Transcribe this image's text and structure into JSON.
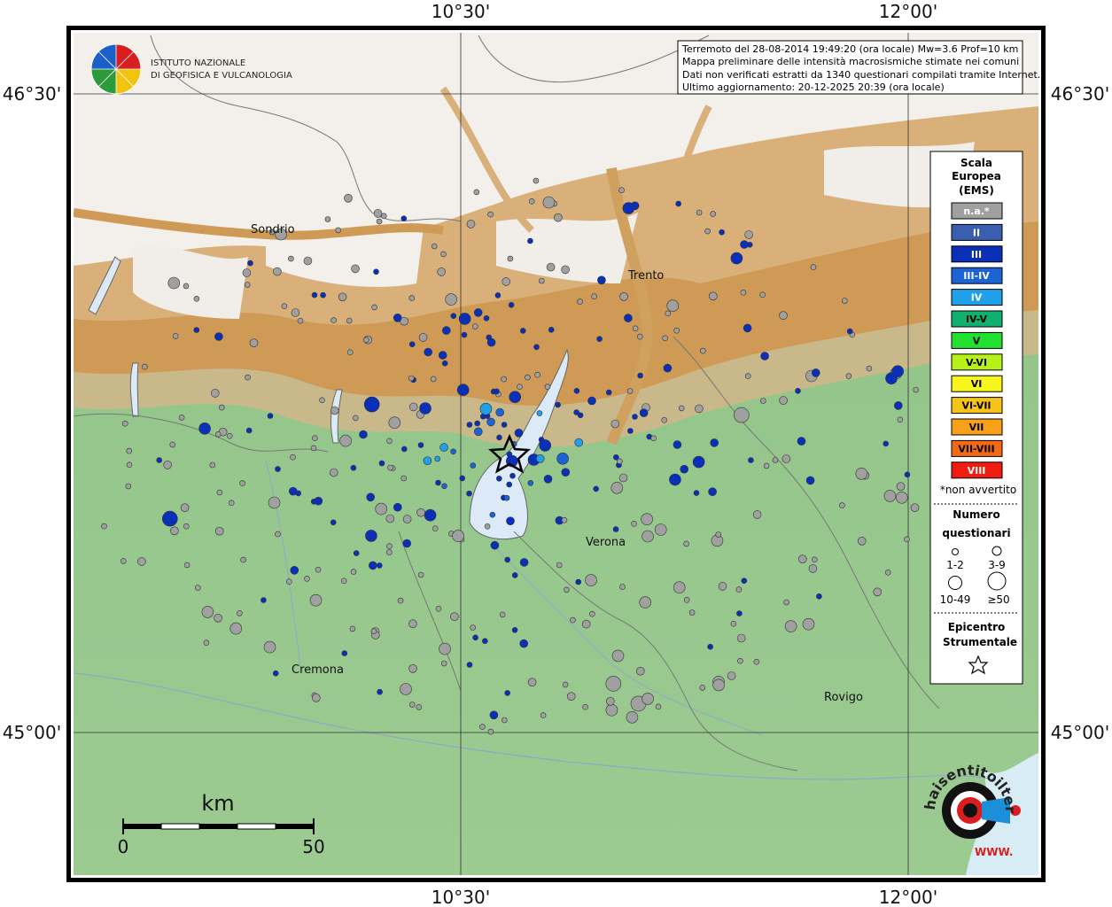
{
  "info_box": {
    "line1": "Terremoto del 28-08-2014 19:49:20 (ora locale) Mw=3.6 Prof=10 km",
    "line2": "Mappa preliminare delle intensità macrosismiche stimate nei comuni",
    "line3": "Dati non verificati estratti da 1340 questionari compilati tramite Internet.",
    "line4": "Ultimo aggiornamento: 20-12-2025 20:39 (ora locale)"
  },
  "ingv": {
    "line1": "ISTITUTO NAZIONALE",
    "line2": "DI GEOFISICA E VULCANOLOGIA"
  },
  "coords": {
    "lon_left": "10°30'",
    "lon_right": "12°00'",
    "lat_top": "46°30'",
    "lat_bottom": "45°00'"
  },
  "cities": [
    "Sondrio",
    "Trento",
    "Verona",
    "Cremona",
    "Rovigo"
  ],
  "scale_bar": {
    "unit": "km",
    "start": "0",
    "end": "50"
  },
  "legend": {
    "title1": "Scala",
    "title2": "Europea",
    "title3": "(EMS)",
    "levels": [
      {
        "label": "n.a.*",
        "color": "#a0a0a0",
        "text": "#ffffff"
      },
      {
        "label": "II",
        "color": "#3a5fb0",
        "text": "#ffffff"
      },
      {
        "label": "III",
        "color": "#0a2fb8",
        "text": "#ffffff"
      },
      {
        "label": "III-IV",
        "color": "#1c63d6",
        "text": "#ffffff"
      },
      {
        "label": "IV",
        "color": "#20a0e8",
        "text": "#ffffff"
      },
      {
        "label": "IV-V",
        "color": "#12b070",
        "text": "#000000"
      },
      {
        "label": "V",
        "color": "#22e030",
        "text": "#000000"
      },
      {
        "label": "V-VI",
        "color": "#b6f21a",
        "text": "#000000"
      },
      {
        "label": "VI",
        "color": "#f6f51c",
        "text": "#000000"
      },
      {
        "label": "VI-VII",
        "color": "#f6c418",
        "text": "#000000"
      },
      {
        "label": "VII",
        "color": "#f7a018",
        "text": "#000000"
      },
      {
        "label": "VII-VIII",
        "color": "#f46a14",
        "text": "#000000"
      },
      {
        "label": "VIII",
        "color": "#f01c10",
        "text": "#ffffff"
      }
    ],
    "note": "*non avvertito",
    "questionnaires_title1": "Numero",
    "questionnaires_title2": "questionari",
    "size_classes": [
      "1-2",
      "3-9",
      "10-49",
      "≥50"
    ],
    "epicenter_title1": "Epicentro",
    "epicenter_title2": "Strumentale"
  },
  "haisentito": {
    "text": "haisentitoilterremoto.it",
    "www": "WWW."
  }
}
